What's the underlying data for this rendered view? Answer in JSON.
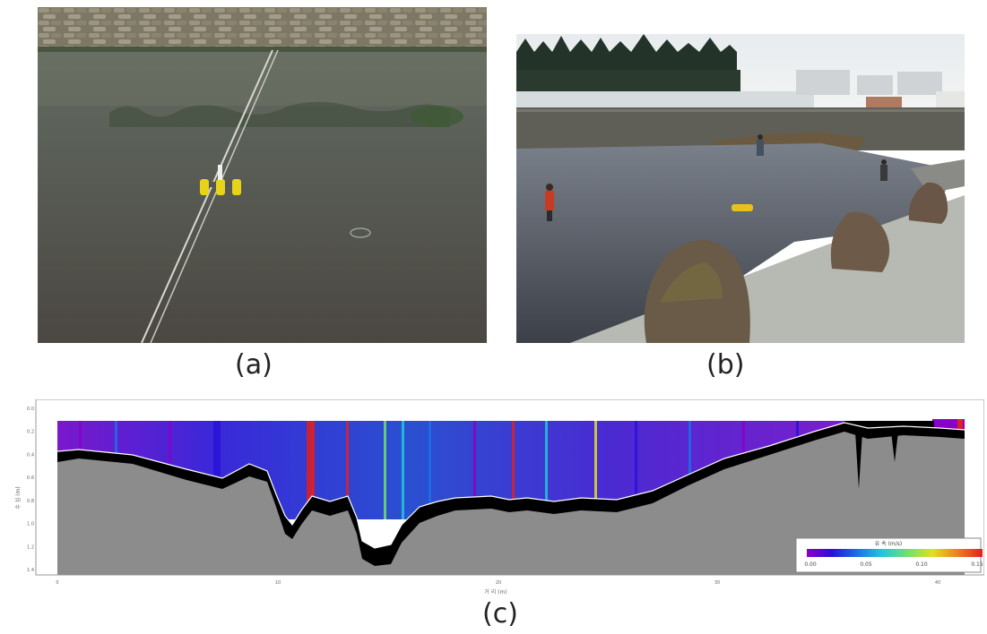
{
  "panels": [
    {
      "label": "(a)"
    },
    {
      "label": "(b)"
    },
    {
      "label": "(c)"
    }
  ],
  "profile": {
    "y_ticks": [
      "0.0",
      "0.2",
      "0.4",
      "0.6",
      "0.8",
      "1.0",
      "1.2",
      "1.4"
    ],
    "y_label": "수 심 (m)",
    "x_ticks": [
      "0",
      "10",
      "20",
      "30",
      "40"
    ],
    "x_label": "거 리 (m)",
    "colorbar": {
      "title": "유 속 (m/s)",
      "ticks": [
        "0.00",
        "0.05",
        "0.10",
        "0.15"
      ],
      "colors": [
        "#8a00c8",
        "#2a10d8",
        "#1a70e8",
        "#20c8d8",
        "#70e070",
        "#e0e020",
        "#f08020",
        "#e02020"
      ]
    }
  }
}
